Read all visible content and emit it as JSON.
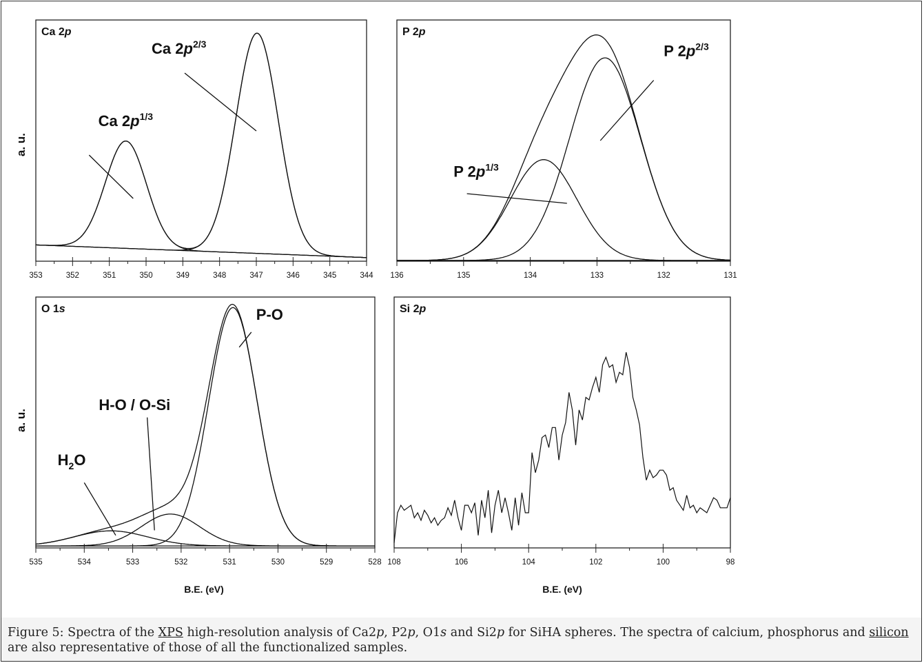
{
  "caption": {
    "prefix": "Figure 5: Spectra of the ",
    "link1": "XPS",
    "middle1": " high-resolution analysis of Ca2",
    "p1": "p",
    "middle2": ", P2",
    "p2": "p",
    "middle3": ", O1",
    "s1": "s",
    "middle4": " and Si2",
    "p3": "p",
    "middle5": " for SiHA spheres. The spectra of calcium, phosphorus and ",
    "link2": "silicon",
    "suffix": " are also representative of those of all the functionalized samples."
  },
  "shared_labels": {
    "ylabel_top": "a. u.",
    "ylabel_bottom": "a. u.",
    "xlabel_left": "B.E. (eV)",
    "xlabel_right": "B.E. (eV)"
  },
  "chart_data": [
    {
      "id": "ca2p",
      "type": "line",
      "title": "Ca 2p",
      "title_base": "Ca 2",
      "title_italic": "p",
      "xlim": [
        353,
        344
      ],
      "x_ticks": [
        "353",
        "352",
        "351",
        "350",
        "349",
        "348",
        "347",
        "346",
        "345",
        "344"
      ],
      "ylim": [
        0,
        1
      ],
      "background": {
        "from": 0.0675,
        "to": 0.015
      },
      "components": [
        {
          "center": 350.55,
          "sigma": 0.56,
          "amplitude": 0.445
        },
        {
          "center": 346.98,
          "sigma": 0.58,
          "amplitude": 0.913
        }
      ],
      "annotations": [
        {
          "base": "Ca 2",
          "italic": "p",
          "sup": "1/3",
          "x": 351.3,
          "y": 0.56,
          "pointer_from": [
            351.55,
            0.44
          ],
          "pointer_to": [
            350.35,
            0.26
          ]
        },
        {
          "base": "Ca 2",
          "italic": "p",
          "sup": "2/3",
          "x": 349.85,
          "y": 0.86,
          "pointer_from": [
            348.95,
            0.78
          ],
          "pointer_to": [
            347.0,
            0.54
          ]
        }
      ]
    },
    {
      "id": "p2p",
      "type": "line",
      "title": "P 2p",
      "title_base": "P 2",
      "title_italic": "p",
      "xlim": [
        136,
        131
      ],
      "x_ticks": [
        "136",
        "135",
        "134",
        "133",
        "132",
        "131"
      ],
      "ylim": [
        0,
        1
      ],
      "background": {
        "from": 0.003,
        "to": 0.003
      },
      "components": [
        {
          "center": 133.8,
          "sigma": 0.5,
          "amplitude": 0.418
        },
        {
          "center": 132.88,
          "sigma": 0.53,
          "amplitude": 0.84
        }
      ],
      "annotations": [
        {
          "base": "P 2",
          "italic": "p",
          "sup": "1/3",
          "x": 135.15,
          "y": 0.35,
          "pointer_from": [
            134.95,
            0.28
          ],
          "pointer_to": [
            133.45,
            0.24
          ]
        },
        {
          "base": "P 2",
          "italic": "p",
          "sup": "2/3",
          "x": 132.0,
          "y": 0.85,
          "pointer_from": [
            132.15,
            0.75
          ],
          "pointer_to": [
            132.95,
            0.5
          ]
        }
      ]
    },
    {
      "id": "o1s",
      "type": "line",
      "title": "O 1s",
      "title_base": "O 1",
      "title_italic": "s",
      "ylabel": "a. u.",
      "xlabel": "B.E. (eV)",
      "xlim": [
        535,
        528
      ],
      "x_ticks": [
        "535",
        "534",
        "533",
        "532",
        "531",
        "530",
        "529",
        "528"
      ],
      "ylim": [
        0,
        1
      ],
      "background": {
        "from": 0.008,
        "to": 0.008
      },
      "components": [
        {
          "center": 533.45,
          "sigma": 0.75,
          "amplitude": 0.06
        },
        {
          "center": 532.22,
          "sigma": 0.6,
          "amplitude": 0.127
        },
        {
          "center": 530.93,
          "sigma": 0.5,
          "amplitude": 0.95
        }
      ],
      "annotations": [
        {
          "text": "P-O",
          "x": 530.45,
          "y": 0.91,
          "pointer_from": [
            530.55,
            0.86
          ],
          "pointer_to": [
            530.8,
            0.8
          ]
        },
        {
          "text": "H-O / O-Si",
          "x": 533.7,
          "y": 0.55,
          "pointer_from": [
            532.7,
            0.52
          ],
          "pointer_to": [
            532.55,
            0.07
          ]
        },
        {
          "base": "H",
          "sub": "2",
          "after": "O",
          "x": 534.55,
          "y": 0.33,
          "pointer_from": [
            534.0,
            0.26
          ],
          "pointer_to": [
            533.35,
            0.05
          ]
        }
      ]
    },
    {
      "id": "si2p",
      "type": "line",
      "title": "Si 2p",
      "title_base": "Si 2",
      "title_italic": "p",
      "xlabel": "B.E. (eV)",
      "xlim": [
        108,
        98
      ],
      "x_ticks": [
        "108",
        "106",
        "104",
        "102",
        "100",
        "98"
      ],
      "ylim": [
        0,
        1
      ],
      "x": [
        108.0,
        107.9,
        107.8,
        107.7,
        107.6,
        107.5,
        107.4,
        107.3,
        107.2,
        107.1,
        107.0,
        106.9,
        106.8,
        106.7,
        106.6,
        106.5,
        106.4,
        106.3,
        106.2,
        106.1,
        106.0,
        105.9,
        105.8,
        105.7,
        105.6,
        105.5,
        105.4,
        105.3,
        105.2,
        105.1,
        105.0,
        104.9,
        104.8,
        104.7,
        104.6,
        104.5,
        104.4,
        104.3,
        104.2,
        104.1,
        104.0,
        103.9,
        103.8,
        103.7,
        103.6,
        103.5,
        103.4,
        103.3,
        103.2,
        103.1,
        103.0,
        102.9,
        102.8,
        102.7,
        102.6,
        102.5,
        102.4,
        102.3,
        102.2,
        102.1,
        102.0,
        101.9,
        101.8,
        101.7,
        101.6,
        101.5,
        101.4,
        101.3,
        101.2,
        101.1,
        101.0,
        100.9,
        100.8,
        100.7,
        100.6,
        100.5,
        100.4,
        100.3,
        100.2,
        100.1,
        100.0,
        99.9,
        99.8,
        99.7,
        99.6,
        99.5,
        99.4,
        99.3,
        99.2,
        99.1,
        99.0,
        98.9,
        98.8,
        98.7,
        98.6,
        98.5,
        98.4,
        98.3,
        98.2,
        98.1,
        98.0
      ],
      "y": [
        0.02,
        0.14,
        0.17,
        0.15,
        0.16,
        0.17,
        0.12,
        0.14,
        0.11,
        0.15,
        0.13,
        0.1,
        0.12,
        0.09,
        0.11,
        0.12,
        0.16,
        0.13,
        0.19,
        0.12,
        0.07,
        0.17,
        0.17,
        0.14,
        0.18,
        0.05,
        0.19,
        0.12,
        0.23,
        0.06,
        0.17,
        0.23,
        0.14,
        0.2,
        0.14,
        0.07,
        0.2,
        0.09,
        0.22,
        0.14,
        0.14,
        0.38,
        0.3,
        0.35,
        0.44,
        0.45,
        0.4,
        0.48,
        0.48,
        0.35,
        0.45,
        0.5,
        0.62,
        0.55,
        0.41,
        0.55,
        0.51,
        0.6,
        0.59,
        0.64,
        0.68,
        0.62,
        0.73,
        0.76,
        0.72,
        0.73,
        0.66,
        0.7,
        0.69,
        0.78,
        0.72,
        0.6,
        0.55,
        0.49,
        0.36,
        0.27,
        0.31,
        0.28,
        0.29,
        0.31,
        0.31,
        0.29,
        0.23,
        0.24,
        0.19,
        0.17,
        0.15,
        0.21,
        0.16,
        0.17,
        0.14,
        0.16,
        0.15,
        0.14,
        0.17,
        0.2,
        0.19,
        0.16,
        0.16,
        0.16,
        0.2
      ],
      "annotations": []
    }
  ]
}
